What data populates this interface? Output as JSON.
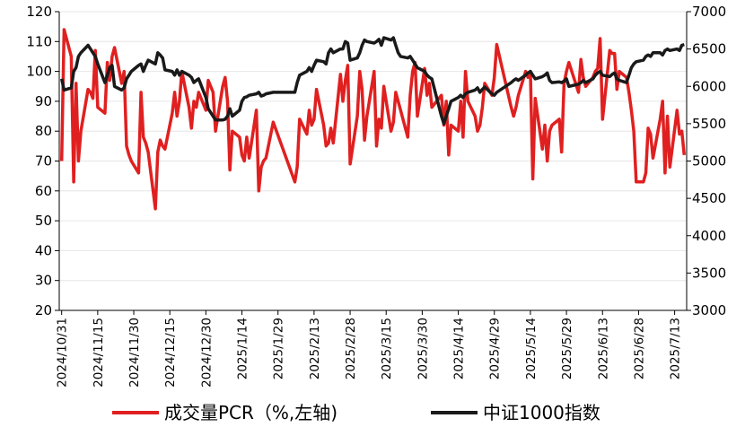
{
  "chart_data": {
    "type": "line",
    "x": [
      "2024/10/31",
      "2024/11/1",
      "2024/11/4",
      "2024/11/5",
      "2024/11/6",
      "2024/11/7",
      "2024/11/8",
      "2024/11/11",
      "2024/11/12",
      "2024/11/13",
      "2024/11/14",
      "2024/11/15",
      "2024/11/18",
      "2024/11/19",
      "2024/11/20",
      "2024/11/21",
      "2024/11/22",
      "2024/11/25",
      "2024/11/26",
      "2024/11/27",
      "2024/11/28",
      "2024/11/29",
      "2024/12/2",
      "2024/12/3",
      "2024/12/4",
      "2024/12/5",
      "2024/12/6",
      "2024/12/9",
      "2024/12/10",
      "2024/12/11",
      "2024/12/12",
      "2024/12/13",
      "2024/12/16",
      "2024/12/17",
      "2024/12/18",
      "2024/12/19",
      "2024/12/20",
      "2024/12/23",
      "2024/12/24",
      "2024/12/25",
      "2024/12/26",
      "2024/12/27",
      "2024/12/30",
      "2024/12/31",
      "2025/1/2",
      "2025/1/3",
      "2025/1/6",
      "2025/1/7",
      "2025/1/8",
      "2025/1/9",
      "2025/1/10",
      "2025/1/13",
      "2025/1/14",
      "2025/1/15",
      "2025/1/16",
      "2025/1/17",
      "2025/1/20",
      "2025/1/21",
      "2025/1/22",
      "2025/1/23",
      "2025/1/24",
      "2025/1/27",
      "2025/2/5",
      "2025/2/6",
      "2025/2/7",
      "2025/2/10",
      "2025/2/11",
      "2025/2/12",
      "2025/2/13",
      "2025/2/14",
      "2025/2/17",
      "2025/2/18",
      "2025/2/19",
      "2025/2/20",
      "2025/2/21",
      "2025/2/24",
      "2025/2/25",
      "2025/2/26",
      "2025/2/27",
      "2025/2/28",
      "2025/3/3",
      "2025/3/4",
      "2025/3/5",
      "2025/3/6",
      "2025/3/7",
      "2025/3/10",
      "2025/3/11",
      "2025/3/12",
      "2025/3/13",
      "2025/3/14",
      "2025/3/17",
      "2025/3/18",
      "2025/3/19",
      "2025/3/20",
      "2025/3/21",
      "2025/3/24",
      "2025/3/25",
      "2025/3/26",
      "2025/3/27",
      "2025/3/28",
      "2025/3/31",
      "2025/4/1",
      "2025/4/2",
      "2025/4/3",
      "2025/4/7",
      "2025/4/8",
      "2025/4/9",
      "2025/4/10",
      "2025/4/11",
      "2025/4/14",
      "2025/4/15",
      "2025/4/16",
      "2025/4/17",
      "2025/4/18",
      "2025/4/21",
      "2025/4/22",
      "2025/4/23",
      "2025/4/24",
      "2025/4/25",
      "2025/4/28",
      "2025/4/29",
      "2025/4/30",
      "2025/5/6",
      "2025/5/7",
      "2025/5/8",
      "2025/5/9",
      "2025/5/12",
      "2025/5/13",
      "2025/5/14",
      "2025/5/15",
      "2025/5/16",
      "2025/5/19",
      "2025/5/20",
      "2025/5/21",
      "2025/5/22",
      "2025/5/23",
      "2025/5/26",
      "2025/5/27",
      "2025/5/28",
      "2025/5/29",
      "2025/5/30",
      "2025/6/3",
      "2025/6/4",
      "2025/6/5",
      "2025/6/6",
      "2025/6/9",
      "2025/6/10",
      "2025/6/11",
      "2025/6/12",
      "2025/6/13",
      "2025/6/16",
      "2025/6/17",
      "2025/6/18",
      "2025/6/19",
      "2025/6/20",
      "2025/6/23",
      "2025/6/24",
      "2025/6/25",
      "2025/6/26",
      "2025/6/27",
      "2025/6/30",
      "2025/7/1",
      "2025/7/2",
      "2025/7/3",
      "2025/7/4",
      "2025/7/7",
      "2025/7/8",
      "2025/7/9",
      "2025/7/10",
      "2025/7/11",
      "2025/7/14",
      "2025/7/15",
      "2025/7/16",
      "2025/7/17"
    ],
    "series": [
      {
        "name": "成交量PCR（%,左轴)",
        "color": "#e02020",
        "values": [
          70,
          114,
          105,
          63,
          96,
          70,
          80,
          94,
          93,
          91,
          107,
          88,
          86,
          103,
          97,
          105,
          108,
          96,
          100,
          75,
          72,
          70,
          66,
          93,
          78,
          76,
          73,
          54,
          73,
          77,
          75,
          74,
          86,
          93,
          85,
          90,
          100,
          88,
          81,
          90,
          88,
          93,
          87,
          97,
          93,
          80,
          95,
          98,
          90,
          67,
          80,
          78,
          72,
          70,
          78,
          71,
          87,
          60,
          68,
          70,
          71,
          83,
          63,
          68,
          84,
          79,
          87,
          82,
          84,
          94,
          82,
          75,
          76,
          81,
          76,
          99,
          90,
          97,
          102,
          69,
          85,
          100,
          94,
          77,
          85,
          100,
          75,
          84,
          81,
          95,
          80,
          83,
          93,
          90,
          87,
          78,
          92,
          100,
          103,
          85,
          101,
          92,
          96,
          88,
          92,
          82,
          90,
          72,
          82,
          80,
          90,
          78,
          100,
          90,
          85,
          80,
          82,
          88,
          96,
          92,
          98,
          109,
          88,
          85,
          88,
          92,
          100,
          98,
          100,
          64,
          91,
          74,
          82,
          70,
          80,
          82,
          84,
          73,
          96,
          100,
          103,
          93,
          104,
          98,
          95,
          98,
          100,
          101,
          111,
          84,
          107,
          106,
          106,
          94,
          100,
          98,
          93,
          87,
          80,
          63,
          63,
          66,
          81,
          79,
          71,
          84,
          90,
          66,
          85,
          68,
          87,
          79,
          80,
          72
        ]
      },
      {
        "name": "中证1000指数",
        "color": "#1a1a1a",
        "axis": "y2",
        "values": [
          6100,
          5950,
          5980,
          6200,
          6250,
          6400,
          6450,
          6550,
          6500,
          6450,
          6400,
          6300,
          6050,
          6150,
          6250,
          6280,
          6000,
          5950,
          5980,
          6100,
          6150,
          6200,
          6280,
          6300,
          6200,
          6280,
          6350,
          6300,
          6450,
          6420,
          6380,
          6220,
          6200,
          6150,
          6220,
          6150,
          6200,
          6150,
          6120,
          6050,
          6080,
          6100,
          5850,
          5700,
          5600,
          5550,
          5550,
          5560,
          5600,
          5700,
          5600,
          5680,
          5800,
          5850,
          5860,
          5880,
          5900,
          5920,
          5870,
          5880,
          5900,
          5920,
          5920,
          6050,
          6150,
          6200,
          6250,
          6200,
          6280,
          6350,
          6330,
          6300,
          6450,
          6500,
          6450,
          6500,
          6500,
          6600,
          6580,
          6350,
          6380,
          6450,
          6550,
          6620,
          6600,
          6580,
          6600,
          6630,
          6550,
          6650,
          6620,
          6650,
          6550,
          6450,
          6400,
          6380,
          6400,
          6350,
          6300,
          6250,
          6200,
          6150,
          6120,
          6100,
          5600,
          5500,
          5600,
          5700,
          5800,
          5850,
          5880,
          5850,
          5900,
          5920,
          5950,
          5980,
          5920,
          5960,
          5990,
          5900,
          5880,
          5920,
          6050,
          6080,
          6100,
          6080,
          6150,
          6180,
          6200,
          6150,
          6100,
          6130,
          6150,
          6180,
          6080,
          6050,
          6060,
          6050,
          6070,
          6100,
          6000,
          6030,
          6050,
          6080,
          6050,
          6100,
          6150,
          6180,
          6200,
          6150,
          6130,
          6160,
          6180,
          6100,
          6080,
          6050,
          6150,
          6250,
          6300,
          6330,
          6350,
          6400,
          6420,
          6400,
          6450,
          6450,
          6420,
          6480,
          6500,
          6480,
          6500,
          6480,
          6550,
          6560
        ]
      }
    ],
    "xticks": [
      "2024/10/31",
      "2024/11/15",
      "2024/11/30",
      "2024/12/15",
      "2024/12/30",
      "2025/1/14",
      "2025/1/29",
      "2025/2/13",
      "2025/2/28",
      "2025/3/15",
      "2025/3/30",
      "2025/4/14",
      "2025/4/29",
      "2025/5/14",
      "2025/5/29",
      "2025/6/13",
      "2025/6/28",
      "2025/7/13"
    ],
    "xlim": [
      "2024/10/30",
      "2025/7/18"
    ],
    "ylim": [
      20,
      120
    ],
    "yticks": [
      20,
      30,
      40,
      50,
      60,
      70,
      80,
      90,
      100,
      110,
      120
    ],
    "y2lim": [
      3000,
      7000
    ],
    "y2ticks": [
      3000,
      3500,
      4000,
      4500,
      5000,
      5500,
      6000,
      6500,
      7000
    ],
    "grid": true,
    "legend": "bottom"
  }
}
